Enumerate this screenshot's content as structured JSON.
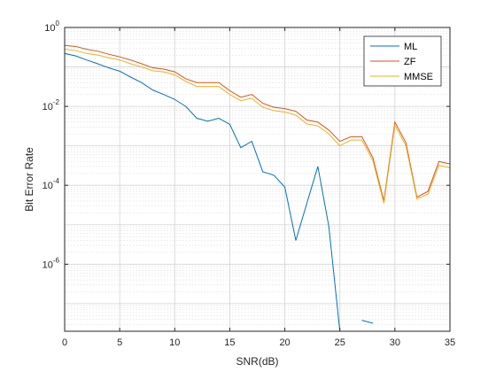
{
  "chart_data": {
    "type": "line",
    "xlabel": "SNR(dB)",
    "ylabel": "Bit Error Rate",
    "xlim": [
      0,
      35
    ],
    "ylim": [
      2e-08,
      1
    ],
    "yscale": "log",
    "grid": true,
    "minor_grid": true,
    "legend_position": "top-right",
    "x_ticks": [
      0,
      5,
      10,
      15,
      20,
      25,
      30,
      35
    ],
    "y_ticks": [
      {
        "value": 1e-06,
        "base": "10",
        "exp": "-6"
      },
      {
        "value": 0.0001,
        "base": "10",
        "exp": "-4"
      },
      {
        "value": 0.01,
        "base": "10",
        "exp": "-2"
      },
      {
        "value": 1,
        "base": "10",
        "exp": "0"
      }
    ],
    "x": [
      0,
      1,
      2,
      3,
      4,
      5,
      6,
      7,
      8,
      9,
      10,
      11,
      12,
      13,
      14,
      15,
      16,
      17,
      18,
      19,
      20,
      21,
      22,
      23,
      24,
      25,
      26,
      27,
      28,
      29,
      30,
      31,
      32,
      33,
      34,
      35
    ],
    "series": [
      {
        "name": "ML",
        "color": "#0072BD",
        "values": [
          0.22,
          0.19,
          0.15,
          0.12,
          0.095,
          0.078,
          0.055,
          0.04,
          0.026,
          0.02,
          0.015,
          0.01,
          0.005,
          0.0042,
          0.005,
          0.0035,
          0.0009,
          0.0013,
          0.00022,
          0.00018,
          9e-05,
          4e-06,
          3.5e-05,
          0.0003,
          9e-06,
          2e-08,
          null,
          3.8e-08,
          3.2e-08,
          null,
          null,
          null,
          null,
          null,
          null,
          null
        ]
      },
      {
        "name": "ZF",
        "color": "#D95319",
        "values": [
          0.35,
          0.33,
          0.28,
          0.25,
          0.21,
          0.18,
          0.15,
          0.12,
          0.095,
          0.088,
          0.075,
          0.05,
          0.04,
          0.04,
          0.04,
          0.025,
          0.017,
          0.02,
          0.012,
          0.0095,
          0.0088,
          0.0075,
          0.0045,
          0.004,
          0.0025,
          0.0013,
          0.0017,
          0.0017,
          0.0005,
          4e-05,
          0.004,
          0.0012,
          5e-05,
          7e-05,
          0.0004,
          0.00035
        ]
      },
      {
        "name": "MMSE",
        "color": "#EDB120",
        "values": [
          0.28,
          0.26,
          0.22,
          0.2,
          0.17,
          0.15,
          0.12,
          0.1,
          0.08,
          0.075,
          0.063,
          0.043,
          0.032,
          0.032,
          0.032,
          0.02,
          0.014,
          0.016,
          0.0095,
          0.0078,
          0.0072,
          0.006,
          0.0036,
          0.0032,
          0.002,
          0.001,
          0.0014,
          0.0014,
          0.00042,
          3.5e-05,
          0.0033,
          0.001,
          4.5e-05,
          6e-05,
          0.00032,
          0.00028
        ]
      }
    ]
  }
}
